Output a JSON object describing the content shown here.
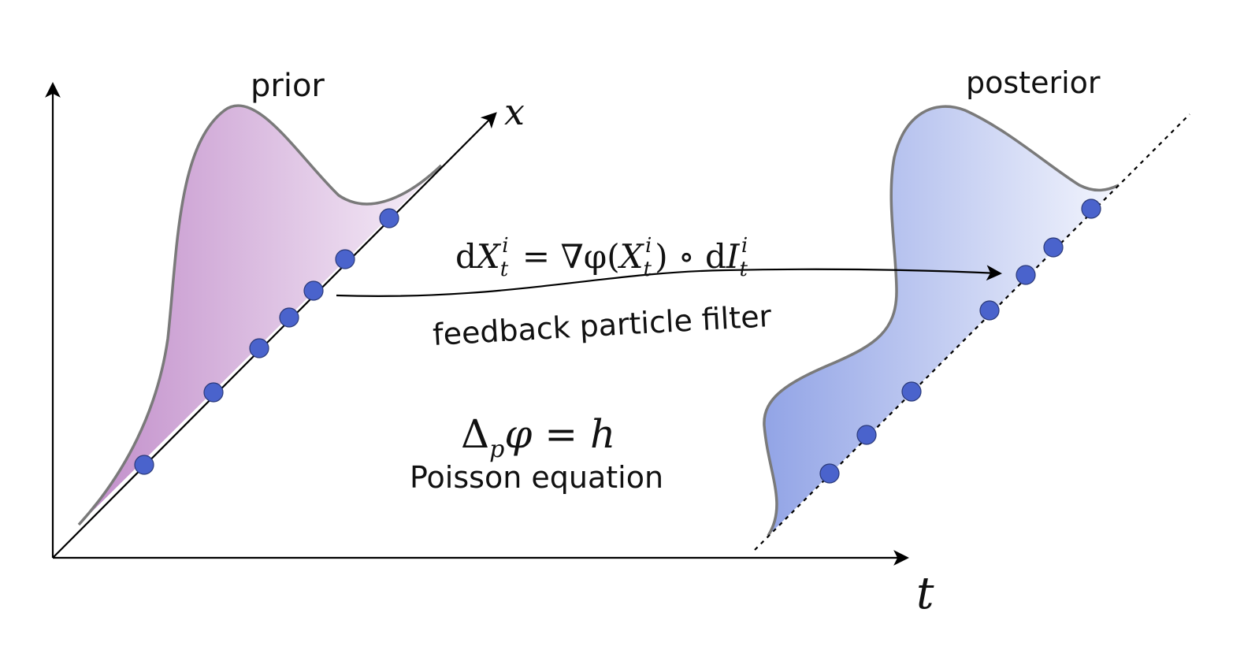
{
  "labels": {
    "prior": "prior",
    "posterior": "posterior",
    "x_axis": "x",
    "t_axis": "t",
    "fpf_caption": "feedback particle filter",
    "poisson_caption": "Poisson equation"
  },
  "equations": {
    "fpf": {
      "d1": "d",
      "X": "X",
      "sub_t": "t",
      "sup_i": "i",
      "mid": " = ∇φ(",
      "X2": "X",
      "sub_t2": "t",
      "sup_i2": "i",
      "close": ") ∘ ",
      "d2": "d",
      "I": "I",
      "sub_t3": "t",
      "sup_i3": "i"
    },
    "poisson": {
      "delta": "Δ",
      "sub_p": "p",
      "rest": "φ = ",
      "h": "h"
    }
  },
  "colors": {
    "prior_fill_dark": "#c494cd",
    "prior_fill_light": "#f6eef8",
    "posterior_fill_dark": "#96a8e8",
    "posterior_fill_light": "#f1f3fc",
    "density_outline": "#7a7a7a",
    "particle": "#4a63cc",
    "particle_stroke": "#2b3a7a",
    "axis": "#000000"
  }
}
